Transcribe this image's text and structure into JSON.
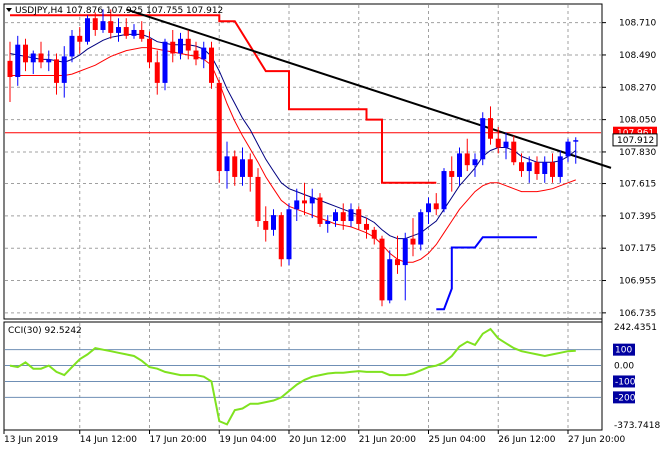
{
  "main_panel": {
    "header": "USDJPY,H4  107.876 107.925 107.755 107.912",
    "price_ticks": [
      "108.710",
      "108.490",
      "108.270",
      "108.050",
      "107.830",
      "107.615",
      "107.395",
      "107.175",
      "106.955",
      "106.735"
    ],
    "level_badges": [
      {
        "label": "107.961",
        "value": 107.961,
        "bg": "#ff0000"
      },
      {
        "label": "107.912",
        "value": 107.912,
        "bg": "#ffffff"
      }
    ]
  },
  "cci_panel": {
    "header": "CCI(30) 92.5242",
    "level_ticks": [
      {
        "label": "242.4351",
        "value": 242.4351
      },
      {
        "label": "100",
        "value": 100,
        "badge": true
      },
      {
        "label": "0.00",
        "value": 0
      },
      {
        "label": "-100",
        "value": -100,
        "badge": true
      },
      {
        "label": "-200",
        "value": -200,
        "badge": true
      },
      {
        "label": "-373.7418",
        "value": -373.7418
      }
    ]
  },
  "time_axis": [
    "13 Jun 2019",
    "14 Jun 12:00",
    "17 Jun 20:00",
    "19 Jun 04:00",
    "20 Jun 12:00",
    "21 Jun 20:00",
    "25 Jun 04:00",
    "26 Jun 12:00",
    "27 Jun 20:00"
  ],
  "colors": {
    "bull_candle": "#0000ff",
    "bear_candle": "#ff0000",
    "ma_fast": "#000080",
    "ma_slow": "#ff0000",
    "stop_upper": "#ff0000",
    "stop_lower": "#0000ff",
    "trendline": "#000000",
    "cci_line": "#7fe21f",
    "resistance_line": "#ff0000"
  },
  "chart_data": {
    "type": "candlestick",
    "symbol": "USDJPY",
    "timeframe": "H4",
    "y_range": [
      106.7,
      108.83
    ],
    "candles": [
      {
        "o": 108.45,
        "h": 108.58,
        "l": 108.17,
        "c": 108.34
      },
      {
        "o": 108.34,
        "h": 108.62,
        "l": 108.28,
        "c": 108.56
      },
      {
        "o": 108.56,
        "h": 108.6,
        "l": 108.38,
        "c": 108.44
      },
      {
        "o": 108.44,
        "h": 108.52,
        "l": 108.36,
        "c": 108.5
      },
      {
        "o": 108.5,
        "h": 108.58,
        "l": 108.4,
        "c": 108.44
      },
      {
        "o": 108.44,
        "h": 108.52,
        "l": 108.38,
        "c": 108.46
      },
      {
        "o": 108.46,
        "h": 108.5,
        "l": 108.22,
        "c": 108.3
      },
      {
        "o": 108.3,
        "h": 108.55,
        "l": 108.2,
        "c": 108.48
      },
      {
        "o": 108.48,
        "h": 108.66,
        "l": 108.44,
        "c": 108.62
      },
      {
        "o": 108.62,
        "h": 108.68,
        "l": 108.5,
        "c": 108.58
      },
      {
        "o": 108.58,
        "h": 108.76,
        "l": 108.56,
        "c": 108.74
      },
      {
        "o": 108.74,
        "h": 108.78,
        "l": 108.62,
        "c": 108.66
      },
      {
        "o": 108.66,
        "h": 108.8,
        "l": 108.64,
        "c": 108.72
      },
      {
        "o": 108.72,
        "h": 108.8,
        "l": 108.6,
        "c": 108.64
      },
      {
        "o": 108.64,
        "h": 108.74,
        "l": 108.58,
        "c": 108.68
      },
      {
        "o": 108.68,
        "h": 108.74,
        "l": 108.6,
        "c": 108.62
      },
      {
        "o": 108.62,
        "h": 108.7,
        "l": 108.6,
        "c": 108.66
      },
      {
        "o": 108.66,
        "h": 108.72,
        "l": 108.58,
        "c": 108.6
      },
      {
        "o": 108.6,
        "h": 108.65,
        "l": 108.4,
        "c": 108.44
      },
      {
        "o": 108.44,
        "h": 108.52,
        "l": 108.22,
        "c": 108.3
      },
      {
        "o": 108.3,
        "h": 108.6,
        "l": 108.25,
        "c": 108.58
      },
      {
        "o": 108.58,
        "h": 108.66,
        "l": 108.44,
        "c": 108.5
      },
      {
        "o": 108.5,
        "h": 108.64,
        "l": 108.46,
        "c": 108.6
      },
      {
        "o": 108.6,
        "h": 108.66,
        "l": 108.46,
        "c": 108.52
      },
      {
        "o": 108.52,
        "h": 108.58,
        "l": 108.42,
        "c": 108.46
      },
      {
        "o": 108.46,
        "h": 108.58,
        "l": 108.4,
        "c": 108.54
      },
      {
        "o": 108.54,
        "h": 108.58,
        "l": 108.26,
        "c": 108.3
      },
      {
        "o": 108.3,
        "h": 108.32,
        "l": 107.62,
        "c": 107.7
      },
      {
        "o": 107.7,
        "h": 107.9,
        "l": 107.58,
        "c": 107.8
      },
      {
        "o": 107.8,
        "h": 107.84,
        "l": 107.6,
        "c": 107.66
      },
      {
        "o": 107.66,
        "h": 107.86,
        "l": 107.6,
        "c": 107.78
      },
      {
        "o": 107.78,
        "h": 107.82,
        "l": 107.56,
        "c": 107.66
      },
      {
        "o": 107.66,
        "h": 107.72,
        "l": 107.32,
        "c": 107.36
      },
      {
        "o": 107.36,
        "h": 107.46,
        "l": 107.22,
        "c": 107.3
      },
      {
        "o": 107.3,
        "h": 107.44,
        "l": 107.26,
        "c": 107.4
      },
      {
        "o": 107.4,
        "h": 107.42,
        "l": 107.05,
        "c": 107.1
      },
      {
        "o": 107.1,
        "h": 107.48,
        "l": 107.06,
        "c": 107.44
      },
      {
        "o": 107.44,
        "h": 107.58,
        "l": 107.36,
        "c": 107.5
      },
      {
        "o": 107.5,
        "h": 107.62,
        "l": 107.4,
        "c": 107.48
      },
      {
        "o": 107.48,
        "h": 107.58,
        "l": 107.38,
        "c": 107.52
      },
      {
        "o": 107.52,
        "h": 107.55,
        "l": 107.32,
        "c": 107.34
      },
      {
        "o": 107.34,
        "h": 107.4,
        "l": 107.28,
        "c": 107.36
      },
      {
        "o": 107.36,
        "h": 107.44,
        "l": 107.32,
        "c": 107.42
      },
      {
        "o": 107.42,
        "h": 107.48,
        "l": 107.3,
        "c": 107.36
      },
      {
        "o": 107.36,
        "h": 107.48,
        "l": 107.32,
        "c": 107.44
      },
      {
        "o": 107.44,
        "h": 107.46,
        "l": 107.3,
        "c": 107.34
      },
      {
        "o": 107.34,
        "h": 107.38,
        "l": 107.24,
        "c": 107.3
      },
      {
        "o": 107.3,
        "h": 107.32,
        "l": 107.2,
        "c": 107.24
      },
      {
        "o": 107.24,
        "h": 107.26,
        "l": 106.78,
        "c": 106.82
      },
      {
        "o": 106.82,
        "h": 107.16,
        "l": 106.8,
        "c": 107.1
      },
      {
        "o": 107.1,
        "h": 107.26,
        "l": 107.0,
        "c": 107.06
      },
      {
        "o": 107.06,
        "h": 107.28,
        "l": 106.82,
        "c": 107.24
      },
      {
        "o": 107.24,
        "h": 107.38,
        "l": 107.12,
        "c": 107.2
      },
      {
        "o": 107.2,
        "h": 107.44,
        "l": 107.16,
        "c": 107.42
      },
      {
        "o": 107.42,
        "h": 107.52,
        "l": 107.34,
        "c": 107.48
      },
      {
        "o": 107.48,
        "h": 107.55,
        "l": 107.4,
        "c": 107.44
      },
      {
        "o": 107.44,
        "h": 107.72,
        "l": 107.42,
        "c": 107.7
      },
      {
        "o": 107.7,
        "h": 107.8,
        "l": 107.56,
        "c": 107.66
      },
      {
        "o": 107.66,
        "h": 107.86,
        "l": 107.6,
        "c": 107.82
      },
      {
        "o": 107.82,
        "h": 107.92,
        "l": 107.7,
        "c": 107.74
      },
      {
        "o": 107.74,
        "h": 107.82,
        "l": 107.66,
        "c": 107.78
      },
      {
        "o": 107.78,
        "h": 108.1,
        "l": 107.74,
        "c": 108.06
      },
      {
        "o": 108.06,
        "h": 108.14,
        "l": 107.88,
        "c": 107.92
      },
      {
        "o": 107.92,
        "h": 108.0,
        "l": 107.82,
        "c": 107.86
      },
      {
        "o": 107.86,
        "h": 107.96,
        "l": 107.78,
        "c": 107.9
      },
      {
        "o": 107.9,
        "h": 107.94,
        "l": 107.74,
        "c": 107.76
      },
      {
        "o": 107.76,
        "h": 107.82,
        "l": 107.66,
        "c": 107.7
      },
      {
        "o": 107.7,
        "h": 107.8,
        "l": 107.62,
        "c": 107.76
      },
      {
        "o": 107.76,
        "h": 107.8,
        "l": 107.64,
        "c": 107.68
      },
      {
        "o": 107.68,
        "h": 107.8,
        "l": 107.62,
        "c": 107.76
      },
      {
        "o": 107.76,
        "h": 107.82,
        "l": 107.62,
        "c": 107.66
      },
      {
        "o": 107.66,
        "h": 107.84,
        "l": 107.62,
        "c": 107.8
      },
      {
        "o": 107.8,
        "h": 107.92,
        "l": 107.76,
        "c": 107.9
      },
      {
        "o": 107.9,
        "h": 107.93,
        "l": 107.75,
        "c": 107.91
      }
    ],
    "ma_fast": [
      108.5,
      108.49,
      108.48,
      108.47,
      108.46,
      108.46,
      108.45,
      108.44,
      108.46,
      108.49,
      108.53,
      108.56,
      108.59,
      108.61,
      108.62,
      108.63,
      108.63,
      108.63,
      108.61,
      108.58,
      108.57,
      108.56,
      108.56,
      108.56,
      108.55,
      108.53,
      108.48,
      108.38,
      108.26,
      108.16,
      108.06,
      107.98,
      107.88,
      107.78,
      107.7,
      107.62,
      107.58,
      107.56,
      107.54,
      107.52,
      107.5,
      107.48,
      107.46,
      107.44,
      107.42,
      107.4,
      107.38,
      107.35,
      107.3,
      107.26,
      107.24,
      107.24,
      107.26,
      107.28,
      107.32,
      107.36,
      107.44,
      107.52,
      107.6,
      107.66,
      107.72,
      107.8,
      107.84,
      107.86,
      107.86,
      107.84,
      107.8,
      107.78,
      107.76,
      107.76,
      107.76,
      107.77,
      107.8,
      107.84
    ],
    "ma_slow": [
      108.35,
      108.35,
      108.35,
      108.35,
      108.35,
      108.35,
      108.35,
      108.35,
      108.36,
      108.38,
      108.4,
      108.42,
      108.45,
      108.48,
      108.5,
      108.52,
      108.53,
      108.54,
      108.54,
      108.53,
      108.52,
      108.51,
      108.5,
      108.49,
      108.48,
      108.46,
      108.42,
      108.3,
      108.16,
      108.04,
      107.94,
      107.85,
      107.76,
      107.66,
      107.58,
      107.5,
      107.46,
      107.44,
      107.42,
      107.4,
      107.38,
      107.36,
      107.34,
      107.33,
      107.32,
      107.3,
      107.28,
      107.25,
      107.2,
      107.14,
      107.1,
      107.08,
      107.08,
      107.1,
      107.14,
      107.2,
      107.28,
      107.36,
      107.44,
      107.5,
      107.56,
      107.6,
      107.62,
      107.62,
      107.6,
      107.58,
      107.56,
      107.56,
      107.56,
      107.57,
      107.58,
      107.6,
      107.62,
      107.64
    ],
    "stop_upper": [
      [
        0,
        108.76
      ],
      [
        27,
        108.76
      ],
      [
        27,
        108.72
      ],
      [
        29,
        108.72
      ],
      [
        33,
        108.38
      ],
      [
        36,
        108.38
      ],
      [
        36,
        108.12
      ],
      [
        46,
        108.12
      ],
      [
        46,
        108.05
      ],
      [
        48,
        108.05
      ],
      [
        48,
        107.62
      ],
      [
        55,
        107.62
      ]
    ],
    "stop_lower": [
      [
        55,
        106.76
      ],
      [
        56,
        106.76
      ],
      [
        57,
        106.9
      ],
      [
        57,
        107.18
      ],
      [
        60,
        107.18
      ],
      [
        61,
        107.25
      ],
      [
        68,
        107.25
      ]
    ],
    "trendline": [
      [
        15,
        108.8
      ],
      [
        73,
        107.8
      ]
    ],
    "resistance_value": 107.961,
    "cci_range": [
      -373.7418,
      242.4351
    ],
    "cci": [
      0,
      -10,
      20,
      -20,
      -20,
      0,
      -40,
      -60,
      -10,
      40,
      70,
      110,
      100,
      90,
      80,
      70,
      60,
      30,
      -10,
      -20,
      -40,
      -50,
      -60,
      -60,
      -60,
      -70,
      -100,
      -350,
      -370,
      -280,
      -270,
      -240,
      -240,
      -230,
      -220,
      -200,
      -160,
      -120,
      -90,
      -70,
      -60,
      -50,
      -45,
      -45,
      -40,
      -35,
      -40,
      -40,
      -40,
      -60,
      -60,
      -60,
      -50,
      -30,
      -10,
      0,
      20,
      60,
      120,
      150,
      130,
      200,
      230,
      170,
      140,
      110,
      90,
      80,
      70,
      60,
      70,
      80,
      90,
      92.5242
    ]
  }
}
